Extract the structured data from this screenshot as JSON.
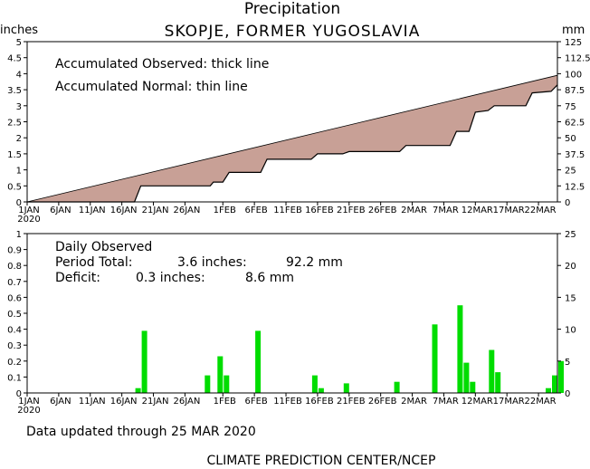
{
  "title": "Precipitation",
  "station": "SKOPJE, FORMER YUGOSLAVIA",
  "colors": {
    "deficit_fill": "#c8a096",
    "bar_fill": "#00dd00",
    "line": "#000000"
  },
  "top_panel": {
    "left_unit": "inches",
    "right_unit": "mm",
    "annotation_observed": "Accumulated Observed: thick line",
    "annotation_normal": "Accumulated Normal: thin line",
    "y_ticks_in": [
      "0",
      "0.5",
      "1",
      "1.5",
      "2",
      "2.5",
      "3",
      "3.5",
      "4",
      "4.5",
      "5"
    ],
    "y_ticks_mm": [
      "0",
      "12.5",
      "25",
      "37.5",
      "50",
      "62.5",
      "75",
      "87.5",
      "100",
      "112.5",
      "125"
    ]
  },
  "bottom_panel": {
    "label_daily": "Daily Observed",
    "label_period": "Period Total:",
    "period_in": "3.6 inches:",
    "period_mm": "92.2 mm",
    "label_deficit": "Deficit:",
    "deficit_in": "0.3 inches:",
    "deficit_mm": "8.6 mm",
    "y_ticks_in": [
      "0",
      "0.1",
      "0.2",
      "0.3",
      "0.4",
      "0.5",
      "0.6",
      "0.7",
      "0.8",
      "0.9",
      "1"
    ],
    "y_ticks_mm": [
      "0",
      "5",
      "10",
      "15",
      "20",
      "25"
    ]
  },
  "x_tick_labels": [
    "1JAN",
    "6JAN",
    "11JAN",
    "16JAN",
    "21JAN",
    "26JAN",
    "1FEB",
    "6FEB",
    "11FEB",
    "16FEB",
    "21FEB",
    "26FEB",
    "2MAR",
    "7MAR",
    "12MAR",
    "17MAR",
    "22MAR"
  ],
  "x_year_label": "2020",
  "footer_updated": "Data updated through 25 MAR 2020",
  "footer_credit": "CLIMATE PREDICTION CENTER/NCEP",
  "chart_data": [
    {
      "type": "area",
      "title": "Precipitation",
      "subtitle": "SKOPJE, FORMER YUGOSLAVIA",
      "x_range_days": [
        1,
        85
      ],
      "ylim_inches": [
        0,
        5
      ],
      "ylim_mm": [
        0,
        125
      ],
      "series": [
        {
          "name": "Accumulated Observed",
          "x": [
            1,
            18,
            19,
            30,
            30.5,
            32,
            33,
            38,
            39,
            46,
            47,
            51,
            52,
            60,
            61,
            68,
            69,
            71,
            72,
            74,
            75,
            80,
            81,
            84,
            85
          ],
          "y": [
            0,
            0,
            0.5,
            0.5,
            0.62,
            0.62,
            0.92,
            0.92,
            1.33,
            1.33,
            1.5,
            1.5,
            1.57,
            1.57,
            1.76,
            1.76,
            2.2,
            2.2,
            2.8,
            2.85,
            3.0,
            3.0,
            3.4,
            3.45,
            3.65
          ]
        },
        {
          "name": "Accumulated Normal",
          "x": [
            1,
            85
          ],
          "y": [
            0,
            3.95
          ]
        }
      ]
    },
    {
      "type": "bar",
      "title": "Daily Observed",
      "ylim_inches": [
        0,
        1
      ],
      "ylim_mm": [
        0,
        25
      ],
      "x": [
        19,
        20,
        30,
        32,
        33,
        38,
        47,
        48,
        52,
        60,
        66,
        70,
        71,
        72,
        75,
        76,
        84,
        85,
        86
      ],
      "values": [
        0.03,
        0.39,
        0.11,
        0.23,
        0.11,
        0.39,
        0.11,
        0.03,
        0.06,
        0.07,
        0.43,
        0.55,
        0.19,
        0.07,
        0.27,
        0.13,
        0.03,
        0.11,
        0.2
      ]
    }
  ]
}
